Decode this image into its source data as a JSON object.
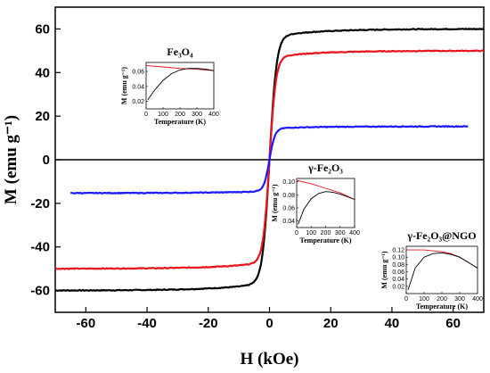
{
  "chart_data": {
    "type": "line",
    "xlabel": "H (kOe)",
    "ylabel": "M (emu g⁻¹)",
    "xlim": [
      -70,
      70
    ],
    "ylim": [
      -70,
      70
    ],
    "x_ticks": [
      -60,
      -40,
      -20,
      0,
      20,
      40,
      60
    ],
    "y_ticks": [
      -60,
      -40,
      -20,
      0,
      20,
      40,
      60
    ],
    "zero_line": true,
    "series": [
      {
        "color": "#000000",
        "ms": 60,
        "hs": 2.3,
        "maxH": 70
      },
      {
        "color": "#e8141c",
        "ms": 50,
        "hs": 2.1,
        "maxH": 70
      },
      {
        "color": "#1a1aff",
        "ms": 15.3,
        "hs": 1.8,
        "maxH": 65
      }
    ],
    "insets": [
      {
        "title": "Fe₃O₄",
        "ylabel": "M (emu g⁻¹)",
        "xlabel": "Temperature (K)",
        "x_ticks": [
          "0",
          "100",
          "200",
          "300",
          "400"
        ],
        "y_ticks": [
          "0.02",
          "0.04",
          "0.06"
        ],
        "xlim": [
          0,
          400
        ],
        "ylim": [
          0.01,
          0.072
        ],
        "fc": [
          [
            0,
            0.068
          ],
          [
            100,
            0.066
          ],
          [
            200,
            0.064
          ],
          [
            300,
            0.063
          ],
          [
            350,
            0.062
          ],
          [
            400,
            0.061
          ]
        ],
        "zfc": [
          [
            10,
            0.022
          ],
          [
            50,
            0.035
          ],
          [
            100,
            0.048
          ],
          [
            150,
            0.057
          ],
          [
            200,
            0.062
          ],
          [
            250,
            0.064
          ],
          [
            300,
            0.064
          ],
          [
            350,
            0.063
          ],
          [
            400,
            0.061
          ]
        ]
      },
      {
        "title": "γ-Fe₂O₃",
        "ylabel": "M (emu g⁻¹)",
        "xlabel": "Temperature (K)",
        "x_ticks": [
          "0",
          "100",
          "200",
          "300",
          "400"
        ],
        "y_ticks": [
          "0.04",
          "0.06",
          "0.08",
          "0.10"
        ],
        "xlim": [
          0,
          400
        ],
        "ylim": [
          0.03,
          0.105
        ],
        "fc": [
          [
            0,
            0.102
          ],
          [
            100,
            0.097
          ],
          [
            200,
            0.09
          ],
          [
            300,
            0.083
          ],
          [
            350,
            0.078
          ],
          [
            400,
            0.073
          ]
        ],
        "zfc": [
          [
            10,
            0.035
          ],
          [
            50,
            0.058
          ],
          [
            100,
            0.074
          ],
          [
            150,
            0.082
          ],
          [
            200,
            0.085
          ],
          [
            250,
            0.084
          ],
          [
            300,
            0.081
          ],
          [
            350,
            0.077
          ],
          [
            400,
            0.073
          ]
        ]
      },
      {
        "title": "γ-Fe₂O₃@NGO",
        "ylabel": "M (emu g⁻¹)",
        "xlabel": "Temperature (K)",
        "x_ticks": [
          "0",
          "100",
          "200",
          "300",
          "400"
        ],
        "y_ticks": [
          "0.02",
          "0.04",
          "0.06",
          "0.08",
          "0.10",
          "0.12"
        ],
        "xlim": [
          0,
          400
        ],
        "ylim": [
          0.0,
          0.13
        ],
        "fc": [
          [
            0,
            0.12
          ],
          [
            100,
            0.12
          ],
          [
            200,
            0.115
          ],
          [
            250,
            0.11
          ],
          [
            300,
            0.1
          ],
          [
            350,
            0.085
          ],
          [
            400,
            0.07
          ]
        ],
        "zfc": [
          [
            10,
            0.01
          ],
          [
            50,
            0.07
          ],
          [
            100,
            0.1
          ],
          [
            150,
            0.11
          ],
          [
            200,
            0.112
          ],
          [
            250,
            0.108
          ],
          [
            300,
            0.1
          ],
          [
            350,
            0.085
          ],
          [
            400,
            0.07
          ]
        ]
      }
    ]
  }
}
